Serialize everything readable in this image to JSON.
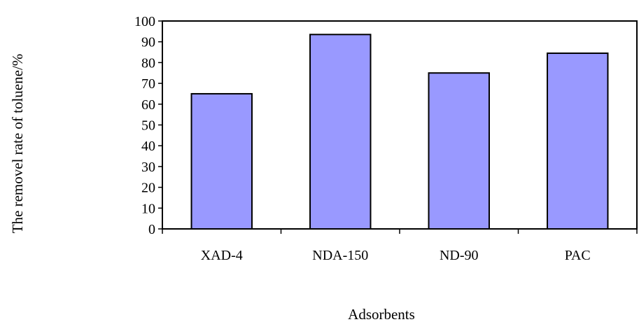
{
  "chart_data": {
    "type": "bar",
    "title": "",
    "categories": [
      "XAD-4",
      "NDA-150",
      "ND-90",
      "PAC"
    ],
    "values": [
      65,
      93.5,
      75,
      84.5
    ],
    "xlabel": "Adsorbents",
    "ylabel": "The removel rate of toluene/%",
    "ylim": [
      0,
      100
    ],
    "yticks": [
      "0",
      "10",
      "20",
      "30",
      "40",
      "50",
      "60",
      "70",
      "80",
      "90",
      "100"
    ],
    "grid": false,
    "legend": "none",
    "bar_color": "#9999ff",
    "bar_edge_color": "#000000"
  }
}
